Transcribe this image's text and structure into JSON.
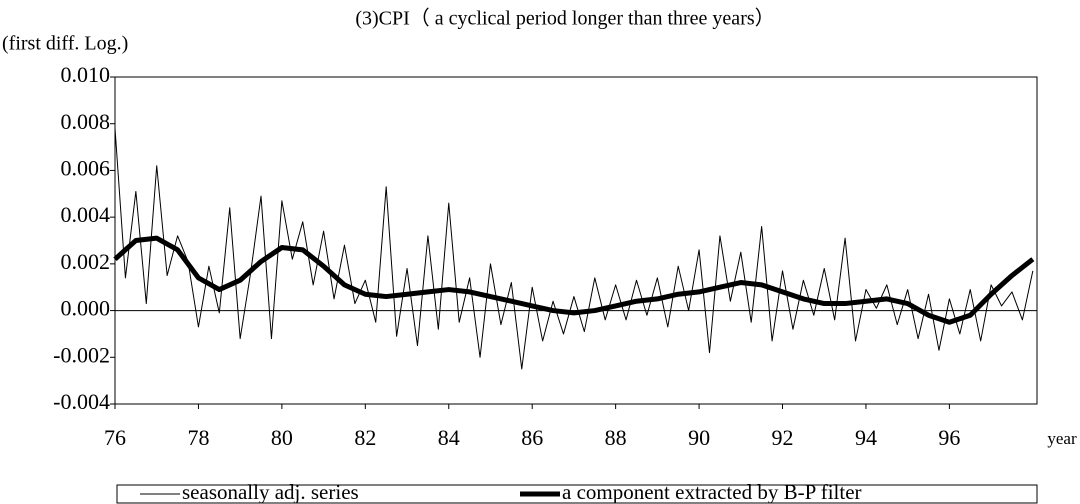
{
  "chart_data": {
    "type": "line",
    "title": "(3)CPI（ a cyclical period longer than three years）",
    "y_label": "(first diff. Log.)",
    "x_label": "year",
    "xlim": [
      76,
      98.1
    ],
    "xticks": [
      76,
      78,
      80,
      82,
      84,
      86,
      88,
      90,
      92,
      94,
      96
    ],
    "ylim": [
      -0.004,
      0.01
    ],
    "yticks": [
      {
        "value": 0.01,
        "label": "0.010"
      },
      {
        "value": 0.008,
        "label": "0.008"
      },
      {
        "value": 0.006,
        "label": "0.006"
      },
      {
        "value": 0.004,
        "label": "0.004"
      },
      {
        "value": 0.002,
        "label": "0.002"
      },
      {
        "value": 0.0,
        "label": "0.000"
      },
      {
        "value": -0.002,
        "label": "-0.002"
      },
      {
        "value": -0.004,
        "label": "-0.004"
      }
    ],
    "legend": "bottom",
    "series": [
      {
        "name": "seasonally adj. series",
        "color": "#000000",
        "width": 1,
        "x": [
          76,
          76.25,
          76.5,
          76.75,
          77,
          77.25,
          77.5,
          77.75,
          78,
          78.25,
          78.5,
          78.75,
          79,
          79.25,
          79.5,
          79.75,
          80,
          80.25,
          80.5,
          80.75,
          81,
          81.25,
          81.5,
          81.75,
          82,
          82.25,
          82.5,
          82.75,
          83,
          83.25,
          83.5,
          83.75,
          84,
          84.25,
          84.5,
          84.75,
          85,
          85.25,
          85.5,
          85.75,
          86,
          86.25,
          86.5,
          86.75,
          87,
          87.25,
          87.5,
          87.75,
          88,
          88.25,
          88.5,
          88.75,
          89,
          89.25,
          89.5,
          89.75,
          90,
          90.25,
          90.5,
          90.75,
          91,
          91.25,
          91.5,
          91.75,
          92,
          92.25,
          92.5,
          92.75,
          93,
          93.25,
          93.5,
          93.75,
          94,
          94.25,
          94.5,
          94.75,
          95,
          95.25,
          95.5,
          95.75,
          96,
          96.25,
          96.5,
          96.75,
          97,
          97.25,
          97.5,
          97.75,
          98
        ],
        "values": [
          0.0078,
          0.0014,
          0.0051,
          0.0003,
          0.0062,
          0.0015,
          0.0032,
          0.0021,
          -0.0007,
          0.0019,
          -0.0001,
          0.0044,
          -0.0012,
          0.0016,
          0.0049,
          -0.0012,
          0.0047,
          0.0022,
          0.0038,
          0.0011,
          0.0034,
          0.0005,
          0.0028,
          0.0003,
          0.0013,
          -0.0005,
          0.0053,
          -0.0011,
          0.0018,
          -0.0015,
          0.0032,
          -0.0008,
          0.0046,
          -0.0005,
          0.0014,
          -0.002,
          0.002,
          -0.0006,
          0.0012,
          -0.0025,
          0.001,
          -0.0013,
          0.0004,
          -0.001,
          0.0006,
          -0.0009,
          0.0014,
          -0.0004,
          0.0011,
          -0.0004,
          0.0013,
          -0.0002,
          0.0014,
          -0.0007,
          0.0019,
          0.0,
          0.0026,
          -0.0018,
          0.0032,
          0.0004,
          0.0025,
          -0.0005,
          0.0036,
          -0.0013,
          0.0017,
          -0.0008,
          0.0013,
          -0.0002,
          0.0018,
          -0.0004,
          0.0031,
          -0.0013,
          0.0009,
          0.0001,
          0.0011,
          -0.0006,
          0.0009,
          -0.0012,
          0.0007,
          -0.0017,
          0.0005,
          -0.001,
          0.0009,
          -0.0013,
          0.0011,
          0.0002,
          0.0008,
          -0.0004,
          0.0017
        ]
      },
      {
        "name": "a component extracted by B-P filter",
        "color": "#000000",
        "width": 5,
        "x": [
          76,
          76.5,
          77,
          77.5,
          78,
          78.5,
          79,
          79.5,
          80,
          80.5,
          81,
          81.5,
          82,
          82.5,
          83,
          83.5,
          84,
          84.5,
          85,
          85.5,
          86,
          86.5,
          87,
          87.5,
          88,
          88.5,
          89,
          89.5,
          90,
          90.5,
          91,
          91.5,
          92,
          92.5,
          93,
          93.5,
          94,
          94.5,
          95,
          95.5,
          96,
          96.5,
          97,
          97.5,
          98
        ],
        "values": [
          0.0022,
          0.003,
          0.0031,
          0.0026,
          0.0014,
          0.0009,
          0.0013,
          0.0021,
          0.0027,
          0.0026,
          0.0019,
          0.0011,
          0.0007,
          0.0006,
          0.0007,
          0.0008,
          0.0009,
          0.0008,
          0.0006,
          0.0004,
          0.0002,
          0.0,
          -0.0001,
          0.0,
          0.0002,
          0.0004,
          0.0005,
          0.0007,
          0.0008,
          0.001,
          0.0012,
          0.0011,
          0.0008,
          0.0005,
          0.0003,
          0.0003,
          0.0004,
          0.0005,
          0.0003,
          -0.0002,
          -0.0005,
          -0.0002,
          0.0007,
          0.0015,
          0.0022
        ]
      }
    ]
  }
}
